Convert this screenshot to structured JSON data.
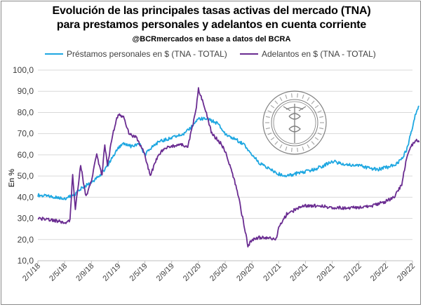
{
  "chart_data": {
    "type": "line",
    "title": "Evolución de las principales tasas activas del mercado (TNA)",
    "title_line2": "para prestamos personales y adelantos en cuenta corriente",
    "subtitle": "@BCRmercados en base a datos del BCRA",
    "ylabel": "En %",
    "xlabel": "",
    "ylim": [
      10,
      100
    ],
    "yticks": [
      "10,0",
      "20,0",
      "30,0",
      "40,0",
      "50,0",
      "60,0",
      "70,0",
      "80,0",
      "90,0",
      "100,0"
    ],
    "xticks": [
      "2/1/18",
      "2/5/18",
      "2/9/18",
      "2/1/19",
      "2/5/19",
      "2/9/19",
      "2/1/20",
      "2/5/20",
      "2/9/20",
      "2/1/21",
      "2/5/21",
      "2/9/21",
      "2/1/22",
      "2/5/22",
      "2/9/22"
    ],
    "grid": true,
    "legend_position": "top",
    "watermark": "Bolsa de Comercio de Rosario",
    "series": [
      {
        "name": "Préstamos personales en $ (TNA - TOTAL)",
        "color": "#1ea7e1",
        "points": [
          [
            0,
            41
          ],
          [
            0.3,
            40.5
          ],
          [
            0.7,
            40
          ],
          [
            1,
            39.5
          ],
          [
            1.3,
            40.5
          ],
          [
            1.6,
            44
          ],
          [
            2,
            47
          ],
          [
            2.3,
            50
          ],
          [
            2.6,
            55
          ],
          [
            3,
            63
          ],
          [
            3.2,
            65
          ],
          [
            3.5,
            64
          ],
          [
            3.8,
            65
          ],
          [
            4,
            60
          ],
          [
            4.2,
            63
          ],
          [
            4.5,
            66
          ],
          [
            5,
            68
          ],
          [
            5.5,
            70
          ],
          [
            6,
            77
          ],
          [
            6.3,
            77
          ],
          [
            6.7,
            75
          ],
          [
            7,
            70
          ],
          [
            7.3,
            68
          ],
          [
            7.7,
            65
          ],
          [
            8,
            60
          ],
          [
            8.3,
            56
          ],
          [
            8.7,
            53
          ],
          [
            9,
            51
          ],
          [
            9.3,
            50
          ],
          [
            9.6,
            51
          ],
          [
            10,
            52
          ],
          [
            10.3,
            53
          ],
          [
            10.7,
            55
          ],
          [
            11,
            57
          ],
          [
            11.3,
            56
          ],
          [
            11.7,
            55
          ],
          [
            12,
            55
          ],
          [
            12.3,
            54
          ],
          [
            12.7,
            53
          ],
          [
            13,
            54
          ],
          [
            13.3,
            55
          ],
          [
            13.6,
            58
          ],
          [
            13.8,
            63
          ],
          [
            14,
            73
          ],
          [
            14.15,
            81
          ],
          [
            14.25,
            83
          ]
        ]
      },
      {
        "name": "Adelantos en $ (TNA - TOTAL)",
        "color": "#6a2c91",
        "points": [
          [
            0,
            30
          ],
          [
            0.3,
            29.5
          ],
          [
            0.6,
            29
          ],
          [
            1,
            28
          ],
          [
            1.2,
            29
          ],
          [
            1.3,
            51
          ],
          [
            1.4,
            35
          ],
          [
            1.6,
            55
          ],
          [
            1.8,
            40
          ],
          [
            2,
            48
          ],
          [
            2.2,
            60
          ],
          [
            2.4,
            50
          ],
          [
            2.5,
            65
          ],
          [
            2.6,
            55
          ],
          [
            2.8,
            70
          ],
          [
            3,
            79
          ],
          [
            3.2,
            78
          ],
          [
            3.4,
            70
          ],
          [
            3.7,
            68
          ],
          [
            4,
            60
          ],
          [
            4.2,
            50
          ],
          [
            4.4,
            57
          ],
          [
            4.7,
            63
          ],
          [
            5,
            64
          ],
          [
            5.3,
            65
          ],
          [
            5.6,
            64
          ],
          [
            5.9,
            80
          ],
          [
            6,
            91
          ],
          [
            6.2,
            84
          ],
          [
            6.5,
            70
          ],
          [
            6.8,
            66
          ],
          [
            7,
            62
          ],
          [
            7.3,
            50
          ],
          [
            7.5,
            40
          ],
          [
            7.7,
            27
          ],
          [
            7.85,
            17
          ],
          [
            8,
            20
          ],
          [
            8.3,
            21
          ],
          [
            8.6,
            21
          ],
          [
            8.9,
            20
          ],
          [
            9,
            26
          ],
          [
            9.3,
            32
          ],
          [
            9.6,
            34
          ],
          [
            10,
            36
          ],
          [
            10.3,
            36
          ],
          [
            10.6,
            36
          ],
          [
            11,
            35
          ],
          [
            11.3,
            35
          ],
          [
            11.6,
            35
          ],
          [
            12,
            35
          ],
          [
            12.5,
            36
          ],
          [
            13,
            38
          ],
          [
            13.3,
            40
          ],
          [
            13.6,
            46
          ],
          [
            13.8,
            60
          ],
          [
            14,
            65
          ],
          [
            14.15,
            67
          ],
          [
            14.25,
            66
          ]
        ]
      }
    ]
  }
}
